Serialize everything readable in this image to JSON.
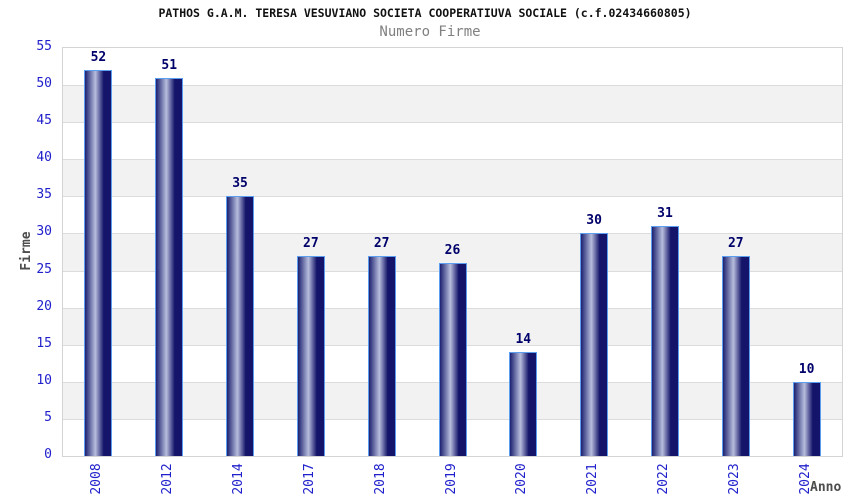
{
  "chart_data": {
    "type": "bar",
    "title": "PATHOS G.A.M. TERESA VESUVIANO SOCIETA COOPERATIUVA SOCIALE (c.f.02434660805)",
    "subtitle": "Numero Firme",
    "xlabel": "Anno",
    "ylabel": "Firme",
    "categories": [
      "2008",
      "2012",
      "2014",
      "2017",
      "2018",
      "2019",
      "2020",
      "2021",
      "2022",
      "2023",
      "2024"
    ],
    "values": [
      52,
      51,
      35,
      27,
      27,
      26,
      14,
      30,
      31,
      27,
      10
    ],
    "ylim": [
      0,
      55
    ],
    "ytick_step": 5,
    "grid": true,
    "legend_position": "none",
    "band_fill_odd": "#f2f2f2",
    "band_fill_even": "#ffffff",
    "colors": {
      "bar_edge_dark": "#1c2070",
      "bar_mid_light": "#b7bedc",
      "bar_body_dark": "#14146a",
      "bar_border": "#5b9ef0",
      "tick_label": "#2020cc",
      "value_label": "#00006b",
      "axis_label": "#4d4d4d",
      "title": "#111111",
      "subtitle": "#808080",
      "gridline": "#dcdcdc",
      "plot_border": "#d4d4d4"
    }
  }
}
